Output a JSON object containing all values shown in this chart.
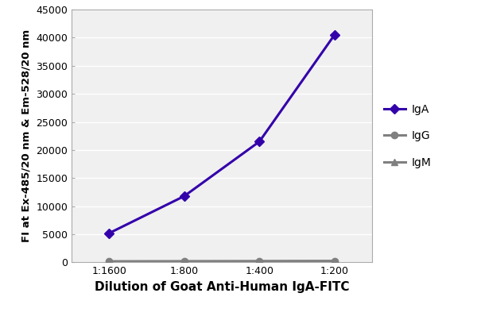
{
  "x_labels": [
    "1:1600",
    "1:800",
    "1:400",
    "1:200"
  ],
  "x_positions": [
    0,
    1,
    2,
    3
  ],
  "IgA_values": [
    5200,
    11800,
    21500,
    40500
  ],
  "IgG_values": [
    180,
    200,
    220,
    250
  ],
  "IgM_values": [
    150,
    160,
    180,
    210
  ],
  "IgA_color": "#3300aa",
  "IgG_color": "#808080",
  "IgM_color": "#808080",
  "IgA_marker": "D",
  "IgG_marker": "o",
  "IgM_marker": "^",
  "xlabel": "Dilution of Goat Anti-Human IgA-FITC",
  "ylabel": "FI at Ex-485/20 nm & Em-528/20 nm",
  "ylim": [
    0,
    45000
  ],
  "yticks": [
    0,
    5000,
    10000,
    15000,
    20000,
    25000,
    30000,
    35000,
    40000,
    45000
  ],
  "legend_labels": [
    "IgA",
    "IgG",
    "IgM"
  ],
  "background_color": "#ffffff",
  "plot_bg_color": "#f0f0f0",
  "grid_color": "#ffffff",
  "line_width": 2.2,
  "IgA_marker_size": 6,
  "IgG_marker_size": 6,
  "IgM_marker_size": 6,
  "xlabel_fontsize": 11,
  "ylabel_fontsize": 9.5,
  "tick_fontsize": 9,
  "legend_fontsize": 10
}
